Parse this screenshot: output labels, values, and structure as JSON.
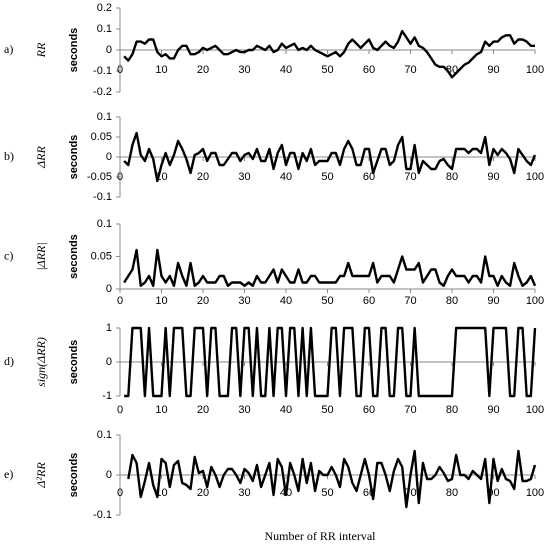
{
  "chart_data": [
    {
      "type": "line",
      "panel": "a)",
      "title": "RR",
      "ylabel": "seconds",
      "x": [
        1,
        2,
        3,
        4,
        5,
        6,
        7,
        8,
        9,
        10,
        11,
        12,
        13,
        14,
        15,
        16,
        17,
        18,
        19,
        20,
        21,
        22,
        23,
        24,
        25,
        26,
        27,
        28,
        29,
        30,
        31,
        32,
        33,
        34,
        35,
        36,
        37,
        38,
        39,
        40,
        41,
        42,
        43,
        44,
        45,
        46,
        47,
        48,
        49,
        50,
        51,
        52,
        53,
        54,
        55,
        56,
        57,
        58,
        59,
        60,
        61,
        62,
        63,
        64,
        65,
        66,
        67,
        68,
        69,
        70,
        71,
        72,
        73,
        74,
        75,
        76,
        77,
        78,
        79,
        80,
        81,
        82,
        83,
        84,
        85,
        86,
        87,
        88,
        89,
        90,
        91,
        92,
        93,
        94,
        95,
        96,
        97,
        98,
        99,
        100
      ],
      "values": [
        -0.03,
        -0.05,
        -0.02,
        0.04,
        0.04,
        0.03,
        0.05,
        0.05,
        -0.01,
        -0.03,
        -0.02,
        -0.04,
        -0.04,
        0,
        0.02,
        0.02,
        -0.02,
        -0.02,
        -0.01,
        0.01,
        0,
        0.01,
        0.02,
        0,
        -0.02,
        -0.02,
        -0.01,
        0,
        -0.01,
        -0.01,
        0,
        0,
        0.02,
        0.01,
        0,
        0.02,
        -0.01,
        0,
        0.03,
        0.01,
        0.02,
        0.03,
        0,
        0.01,
        0,
        0.02,
        0,
        -0.01,
        -0.02,
        -0.03,
        -0.02,
        -0.01,
        -0.03,
        -0.01,
        0.03,
        0.05,
        0.03,
        0.01,
        0.03,
        0.05,
        0.01,
        0,
        0.02,
        0.04,
        0.02,
        0.01,
        0.04,
        0.09,
        0.06,
        0.03,
        0.06,
        0.02,
        0.01,
        -0.01,
        -0.04,
        -0.07,
        -0.08,
        -0.08,
        -0.1,
        -0.13,
        -0.11,
        -0.09,
        -0.07,
        -0.06,
        -0.04,
        -0.02,
        -0.01,
        0.04,
        0.02,
        0.04,
        0.04,
        0.06,
        0.07,
        0.07,
        0.03,
        0.05,
        0.05,
        0.04,
        0.02,
        0.02
      ],
      "color": "#000000",
      "xlim": [
        0,
        100
      ],
      "xticks": [
        0,
        10,
        20,
        30,
        40,
        50,
        60,
        70,
        80,
        90,
        100
      ],
      "ylim": [
        -0.2,
        0.2
      ],
      "yticks": [
        0.2,
        0.1,
        0,
        -0.1,
        -0.2
      ]
    },
    {
      "type": "line",
      "panel": "b)",
      "title": "ΔRR",
      "ylabel": "seconds",
      "x": [
        1,
        2,
        3,
        4,
        5,
        6,
        7,
        8,
        9,
        10,
        11,
        12,
        13,
        14,
        15,
        16,
        17,
        18,
        19,
        20,
        21,
        22,
        23,
        24,
        25,
        26,
        27,
        28,
        29,
        30,
        31,
        32,
        33,
        34,
        35,
        36,
        37,
        38,
        39,
        40,
        41,
        42,
        43,
        44,
        45,
        46,
        47,
        48,
        49,
        50,
        51,
        52,
        53,
        54,
        55,
        56,
        57,
        58,
        59,
        60,
        61,
        62,
        63,
        64,
        65,
        66,
        67,
        68,
        69,
        70,
        71,
        72,
        73,
        74,
        75,
        76,
        77,
        78,
        79,
        80,
        81,
        82,
        83,
        84,
        85,
        86,
        87,
        88,
        89,
        90,
        91,
        92,
        93,
        94,
        95,
        96,
        97,
        98,
        99,
        100
      ],
      "values": [
        -0.01,
        -0.02,
        0.03,
        0.06,
        0.005,
        -0.01,
        0.02,
        -0.005,
        -0.06,
        -0.02,
        0.01,
        -0.02,
        0.005,
        0.04,
        0.02,
        -0.005,
        -0.04,
        0.005,
        0.01,
        0.02,
        -0.01,
        0.01,
        0.01,
        -0.02,
        -0.02,
        -0.005,
        0.01,
        0.01,
        -0.01,
        0.005,
        0.01,
        -0.005,
        0.02,
        -0.01,
        -0.01,
        0.02,
        -0.03,
        0.01,
        0.03,
        -0.02,
        0.01,
        0.01,
        -0.03,
        0.01,
        -0.01,
        0.02,
        -0.02,
        -0.01,
        -0.01,
        -0.01,
        0.01,
        0.01,
        -0.02,
        0.02,
        0.04,
        0.02,
        -0.02,
        -0.02,
        0.02,
        0.02,
        -0.04,
        -0.01,
        0.02,
        0.02,
        -0.02,
        -0.01,
        0.03,
        0.05,
        -0.03,
        -0.03,
        0.03,
        -0.04,
        -0.01,
        -0.02,
        -0.03,
        -0.03,
        -0.01,
        -0.005,
        -0.02,
        -0.03,
        0.02,
        0.02,
        0.02,
        0.01,
        0.02,
        0.02,
        0.01,
        0.05,
        -0.02,
        0.02,
        0.005,
        0.02,
        0.01,
        -0.005,
        -0.04,
        0.02,
        0.005,
        -0.01,
        -0.02,
        0.005
      ],
      "color": "#000000",
      "xlim": [
        0,
        100
      ],
      "xticks": [
        0,
        10,
        20,
        30,
        40,
        50,
        60,
        70,
        80,
        90,
        100
      ],
      "ylim": [
        -0.1,
        0.1
      ],
      "yticks": [
        0.1,
        0.05,
        0,
        -0.05,
        -0.1
      ]
    },
    {
      "type": "line",
      "panel": "c)",
      "title": "|ΔRR|",
      "ylabel": "seconds",
      "x": [
        1,
        2,
        3,
        4,
        5,
        6,
        7,
        8,
        9,
        10,
        11,
        12,
        13,
        14,
        15,
        16,
        17,
        18,
        19,
        20,
        21,
        22,
        23,
        24,
        25,
        26,
        27,
        28,
        29,
        30,
        31,
        32,
        33,
        34,
        35,
        36,
        37,
        38,
        39,
        40,
        41,
        42,
        43,
        44,
        45,
        46,
        47,
        48,
        49,
        50,
        51,
        52,
        53,
        54,
        55,
        56,
        57,
        58,
        59,
        60,
        61,
        62,
        63,
        64,
        65,
        66,
        67,
        68,
        69,
        70,
        71,
        72,
        73,
        74,
        75,
        76,
        77,
        78,
        79,
        80,
        81,
        82,
        83,
        84,
        85,
        86,
        87,
        88,
        89,
        90,
        91,
        92,
        93,
        94,
        95,
        96,
        97,
        98,
        99,
        100
      ],
      "values": [
        0.01,
        0.02,
        0.03,
        0.06,
        0.005,
        0.01,
        0.02,
        0.005,
        0.06,
        0.02,
        0.01,
        0.02,
        0.005,
        0.04,
        0.02,
        0.005,
        0.04,
        0.005,
        0.01,
        0.02,
        0.01,
        0.01,
        0.01,
        0.02,
        0.02,
        0.005,
        0.01,
        0.01,
        0.01,
        0.005,
        0.01,
        0.005,
        0.02,
        0.01,
        0.01,
        0.02,
        0.03,
        0.01,
        0.03,
        0.02,
        0.01,
        0.01,
        0.03,
        0.01,
        0.01,
        0.02,
        0.02,
        0.01,
        0.01,
        0.01,
        0.01,
        0.01,
        0.02,
        0.02,
        0.04,
        0.02,
        0.02,
        0.02,
        0.02,
        0.02,
        0.04,
        0.01,
        0.02,
        0.02,
        0.02,
        0.01,
        0.03,
        0.05,
        0.03,
        0.03,
        0.03,
        0.04,
        0.01,
        0.02,
        0.03,
        0.03,
        0.01,
        0.005,
        0.02,
        0.03,
        0.02,
        0.02,
        0.02,
        0.01,
        0.02,
        0.02,
        0.01,
        0.05,
        0.02,
        0.02,
        0.005,
        0.02,
        0.01,
        0.005,
        0.04,
        0.02,
        0.005,
        0.01,
        0.02,
        0.005
      ],
      "color": "#000000",
      "xlim": [
        0,
        100
      ],
      "xticks": [
        0,
        10,
        20,
        30,
        40,
        50,
        60,
        70,
        80,
        90,
        100
      ],
      "ylim": [
        0,
        0.1
      ],
      "yticks": [
        0.1,
        0.05,
        0
      ]
    },
    {
      "type": "line",
      "panel": "d)",
      "title": "sign(ΔRR)",
      "ylabel": "seconds",
      "x": [
        1,
        2,
        3,
        4,
        5,
        6,
        7,
        8,
        9,
        10,
        11,
        12,
        13,
        14,
        15,
        16,
        17,
        18,
        19,
        20,
        21,
        22,
        23,
        24,
        25,
        26,
        27,
        28,
        29,
        30,
        31,
        32,
        33,
        34,
        35,
        36,
        37,
        38,
        39,
        40,
        41,
        42,
        43,
        44,
        45,
        46,
        47,
        48,
        49,
        50,
        51,
        52,
        53,
        54,
        55,
        56,
        57,
        58,
        59,
        60,
        61,
        62,
        63,
        64,
        65,
        66,
        67,
        68,
        69,
        70,
        71,
        72,
        73,
        74,
        75,
        76,
        77,
        78,
        79,
        80,
        81,
        82,
        83,
        84,
        85,
        86,
        87,
        88,
        89,
        90,
        91,
        92,
        93,
        94,
        95,
        96,
        97,
        98,
        99,
        100
      ],
      "values": [
        -1,
        -1,
        1,
        1,
        1,
        -1,
        1,
        -1,
        -1,
        -1,
        1,
        -1,
        1,
        1,
        1,
        -1,
        -1,
        1,
        1,
        1,
        -1,
        1,
        1,
        -1,
        -1,
        -1,
        1,
        1,
        -1,
        1,
        1,
        -1,
        1,
        -1,
        -1,
        1,
        -1,
        1,
        1,
        -1,
        1,
        1,
        -1,
        1,
        -1,
        1,
        -1,
        -1,
        -1,
        -1,
        1,
        1,
        -1,
        1,
        1,
        1,
        -1,
        -1,
        1,
        1,
        -1,
        -1,
        1,
        1,
        -1,
        -1,
        1,
        1,
        -1,
        -1,
        1,
        -1,
        -1,
        -1,
        -1,
        -1,
        -1,
        -1,
        -1,
        -1,
        1,
        1,
        1,
        1,
        1,
        1,
        1,
        1,
        -1,
        1,
        1,
        1,
        1,
        -1,
        -1,
        1,
        1,
        -1,
        -1,
        1
      ],
      "color": "#000000",
      "xlim": [
        0,
        100
      ],
      "xticks": [
        0,
        10,
        20,
        30,
        40,
        50,
        60,
        70,
        80,
        90,
        100
      ],
      "ylim": [
        -1,
        1
      ],
      "yticks": [
        1,
        0,
        -1
      ]
    },
    {
      "type": "line",
      "panel": "e)",
      "title": "Δ²RR",
      "ylabel": "seconds",
      "x": [
        2,
        3,
        4,
        5,
        6,
        7,
        8,
        9,
        10,
        11,
        12,
        13,
        14,
        15,
        16,
        17,
        18,
        19,
        20,
        21,
        22,
        23,
        24,
        25,
        26,
        27,
        28,
        29,
        30,
        31,
        32,
        33,
        34,
        35,
        36,
        37,
        38,
        39,
        40,
        41,
        42,
        43,
        44,
        45,
        46,
        47,
        48,
        49,
        50,
        51,
        52,
        53,
        54,
        55,
        56,
        57,
        58,
        59,
        60,
        61,
        62,
        63,
        64,
        65,
        66,
        67,
        68,
        69,
        70,
        71,
        72,
        73,
        74,
        75,
        76,
        77,
        78,
        79,
        80,
        81,
        82,
        83,
        84,
        85,
        86,
        87,
        88,
        89,
        90,
        91,
        92,
        93,
        94,
        95,
        96,
        97,
        98,
        99,
        100
      ],
      "values": [
        -0.01,
        0.05,
        0.03,
        -0.055,
        -0.015,
        0.03,
        -0.025,
        -0.055,
        0.04,
        0.03,
        -0.03,
        0.025,
        0.035,
        -0.02,
        -0.025,
        -0.035,
        0.045,
        0.005,
        0.01,
        -0.03,
        0.02,
        0,
        -0.03,
        0,
        0.015,
        0.015,
        0,
        -0.02,
        0.015,
        0.005,
        -0.015,
        0.025,
        -0.03,
        0,
        0.03,
        -0.05,
        0.04,
        0.02,
        -0.05,
        0.03,
        0,
        -0.04,
        0.04,
        -0.02,
        0.03,
        -0.04,
        0.01,
        0,
        0,
        0.02,
        0,
        -0.03,
        0.04,
        0.02,
        -0.02,
        -0.04,
        0,
        0.04,
        0,
        -0.06,
        0.03,
        0.03,
        0,
        -0.04,
        0.01,
        0.04,
        0.02,
        -0.08,
        0,
        0.06,
        -0.07,
        0.03,
        -0.01,
        -0.01,
        0,
        0.02,
        0.005,
        -0.015,
        -0.01,
        0.05,
        0,
        0,
        -0.01,
        0.01,
        0,
        -0.01,
        0.04,
        -0.07,
        0.04,
        -0.015,
        0.015,
        -0.01,
        -0.015,
        -0.035,
        0.06,
        -0.015,
        -0.015,
        -0.01,
        0.025
      ],
      "color": "#000000",
      "xlim": [
        0,
        100
      ],
      "xticks": [
        0,
        10,
        20,
        30,
        40,
        50,
        60,
        70,
        80,
        90,
        100
      ],
      "ylim": [
        -0.1,
        0.1
      ],
      "yticks": [
        0.1,
        0,
        -0.1
      ]
    }
  ],
  "xlabel": "Number of RR interval"
}
